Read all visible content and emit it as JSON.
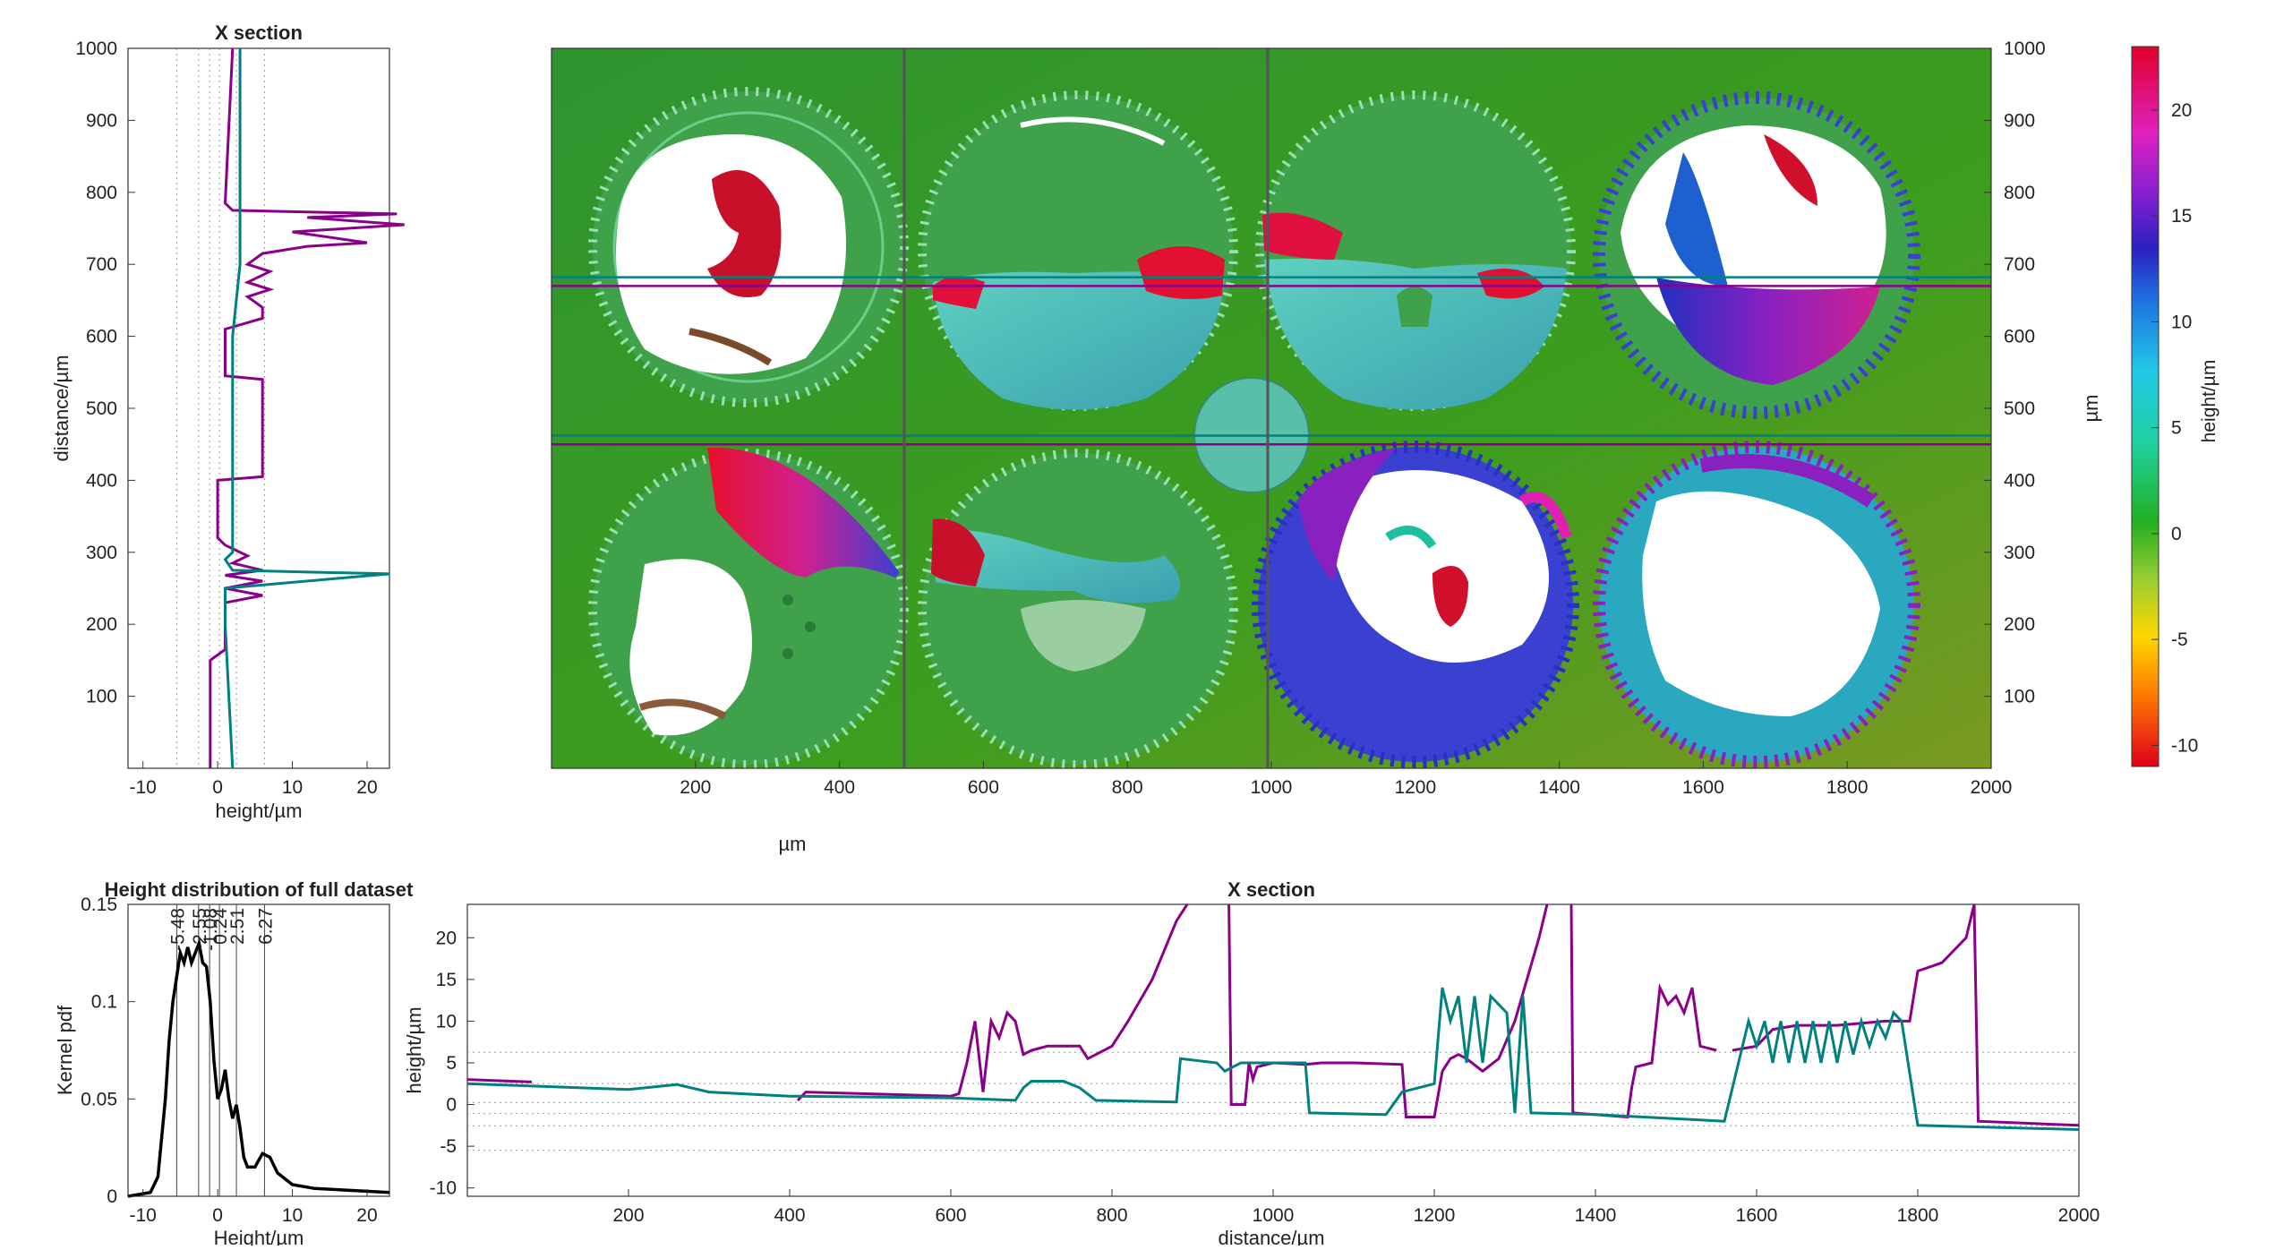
{
  "colors": {
    "magenta_series": "#8b008b",
    "teal_series": "#008080",
    "background_green": "#3a9a1e",
    "pdf_line": "#000000"
  },
  "left_section": {
    "title": "X section",
    "xlabel": "height/µm",
    "ylabel": "distance/µm",
    "xticks": [
      "-10",
      "0",
      "10",
      "20"
    ],
    "yticks": [
      "100",
      "200",
      "300",
      "400",
      "500",
      "600",
      "700",
      "800",
      "900",
      "1000"
    ]
  },
  "map": {
    "xlabel": "µm",
    "ylabel_right": "µm",
    "xticks": [
      "200",
      "400",
      "600",
      "800",
      "1000",
      "1200",
      "1400",
      "1600",
      "1800",
      "2000"
    ],
    "yticks_right": [
      "100",
      "200",
      "300",
      "400",
      "500",
      "600",
      "700",
      "800",
      "900",
      "1000"
    ]
  },
  "colorbar": {
    "label": "height/µm",
    "ticks": [
      "20",
      "15",
      "10",
      "5",
      "0",
      "-5",
      "-10"
    ]
  },
  "pdf_panel": {
    "title": "Height distribution of full dataset",
    "xlabel": "Height/µm",
    "ylabel": "Kernel pdf",
    "xticks": [
      "-10",
      "0",
      "10",
      "20"
    ],
    "yticks": [
      "0",
      "0.05",
      "0.1",
      "0.15"
    ],
    "stat_labels": [
      "-5.48",
      "-2.55",
      "-1.08",
      "0.24",
      "2.51",
      "6.27"
    ]
  },
  "bottom_section": {
    "title": "X section",
    "xlabel": "distance/µm",
    "ylabel": "height/µm",
    "xticks": [
      "200",
      "400",
      "600",
      "800",
      "1000",
      "1200",
      "1400",
      "1600",
      "1800",
      "2000"
    ],
    "yticks": [
      "-10",
      "-5",
      "0",
      "5",
      "10",
      "15",
      "20"
    ]
  },
  "chart_data": [
    {
      "type": "line",
      "title": "X section",
      "xlabel": "height/µm",
      "ylabel": "distance/µm",
      "xlim": [
        -12,
        23
      ],
      "ylim": [
        0,
        1000
      ],
      "reference_lines_x": [
        -5.48,
        -2.55,
        -1.08,
        0.24,
        2.51,
        6.27
      ],
      "series": [
        {
          "color": "magenta",
          "points": [
            [
              -1,
              0
            ],
            [
              -1,
              150
            ],
            [
              1,
              165
            ],
            [
              1,
              230
            ],
            [
              6,
              240
            ],
            [
              1,
              250
            ],
            [
              6,
              260
            ],
            [
              1,
              268
            ],
            [
              6,
              275
            ],
            [
              2,
              285
            ],
            [
              4,
              295
            ],
            [
              1,
              310
            ],
            [
              0,
              320
            ],
            [
              0,
              400
            ],
            [
              6,
              405
            ],
            [
              6,
              540
            ],
            [
              1,
              545
            ],
            [
              1,
              610
            ],
            [
              6,
              625
            ],
            [
              6,
              640
            ],
            [
              4,
              655
            ],
            [
              7,
              665
            ],
            [
              4,
              675
            ],
            [
              7,
              690
            ],
            [
              4,
              700
            ],
            [
              6,
              715
            ],
            [
              12,
              725
            ],
            [
              20,
              730
            ],
            [
              10,
              745
            ],
            [
              25,
              755
            ],
            [
              12,
              765
            ],
            [
              24,
              770
            ],
            [
              2,
              775
            ],
            [
              1,
              785
            ],
            [
              2,
              1000
            ]
          ]
        },
        {
          "color": "teal",
          "points": [
            [
              2,
              0
            ],
            [
              1.5,
              100
            ],
            [
              1,
              200
            ],
            [
              1,
              250
            ],
            [
              23,
              270
            ],
            [
              2,
              275
            ],
            [
              1,
              290
            ],
            [
              2,
              300
            ],
            [
              2,
              400
            ],
            [
              2,
              500
            ],
            [
              2,
              600
            ],
            [
              3,
              700
            ],
            [
              3,
              770
            ],
            [
              3,
              1000
            ]
          ]
        }
      ]
    },
    {
      "type": "heatmap",
      "xlabel": "µm",
      "ylabel": "µm",
      "xlim": [
        0,
        2000
      ],
      "ylim": [
        0,
        1000
      ],
      "colorbar_label": "height/µm",
      "colorbar_range": [
        -11,
        23
      ],
      "section_lines_y": [
        450,
        462,
        670,
        682
      ],
      "section_lines_x": [
        490,
        995
      ]
    },
    {
      "type": "line",
      "title": "Height distribution of full dataset",
      "xlabel": "Height/µm",
      "ylabel": "Kernel pdf",
      "xlim": [
        -12,
        23
      ],
      "ylim": [
        0,
        0.15
      ],
      "vertical_lines": [
        -5.48,
        -2.55,
        -1.08,
        0.24,
        2.51,
        6.27
      ],
      "series": [
        {
          "points": [
            [
              -12,
              0
            ],
            [
              -9,
              0.002
            ],
            [
              -8,
              0.01
            ],
            [
              -7,
              0.05
            ],
            [
              -6.5,
              0.08
            ],
            [
              -6,
              0.1
            ],
            [
              -5,
              0.125
            ],
            [
              -4.5,
              0.12
            ],
            [
              -4,
              0.128
            ],
            [
              -3.5,
              0.12
            ],
            [
              -3,
              0.125
            ],
            [
              -2.5,
              0.13
            ],
            [
              -2,
              0.12
            ],
            [
              -1.5,
              0.118
            ],
            [
              -1,
              0.1
            ],
            [
              -0.5,
              0.07
            ],
            [
              0,
              0.05
            ],
            [
              0.5,
              0.055
            ],
            [
              1,
              0.065
            ],
            [
              1.5,
              0.05
            ],
            [
              2,
              0.04
            ],
            [
              2.5,
              0.047
            ],
            [
              3,
              0.035
            ],
            [
              3.5,
              0.02
            ],
            [
              4,
              0.015
            ],
            [
              5,
              0.015
            ],
            [
              6,
              0.022
            ],
            [
              7,
              0.02
            ],
            [
              8,
              0.012
            ],
            [
              10,
              0.006
            ],
            [
              13,
              0.004
            ],
            [
              18,
              0.003
            ],
            [
              23,
              0.002
            ]
          ]
        }
      ]
    },
    {
      "type": "line",
      "title": "X section",
      "xlabel": "distance/µm",
      "ylabel": "height/µm",
      "xlim": [
        0,
        2000
      ],
      "ylim": [
        -11,
        24
      ],
      "reference_lines_y": [
        -5.48,
        -2.55,
        -1.08,
        0.24,
        2.51,
        6.27
      ],
      "series": [
        {
          "color": "magenta",
          "points": [
            [
              0,
              3
            ],
            [
              80,
              2.7
            ],
            [
              null,
              null
            ],
            [
              410,
              0.5
            ],
            [
              420,
              1.5
            ],
            [
              600,
              1
            ],
            [
              610,
              1.3
            ],
            [
              620,
              5
            ],
            [
              630,
              10
            ],
            [
              640,
              1.5
            ],
            [
              650,
              10
            ],
            [
              660,
              8
            ],
            [
              670,
              11
            ],
            [
              680,
              10
            ],
            [
              690,
              6
            ],
            [
              700,
              6.5
            ],
            [
              720,
              7
            ],
            [
              760,
              7
            ],
            [
              770,
              5.5
            ],
            [
              780,
              6
            ],
            [
              800,
              7
            ],
            [
              820,
              10
            ],
            [
              850,
              15
            ],
            [
              880,
              22
            ],
            [
              900,
              25
            ],
            [
              null,
              null
            ],
            [
              945,
              25
            ],
            [
              948,
              0
            ],
            [
              965,
              0
            ],
            [
              970,
              5
            ],
            [
              975,
              3
            ],
            [
              980,
              4.5
            ],
            [
              1000,
              5
            ],
            [
              1040,
              4.8
            ],
            [
              1060,
              5
            ],
            [
              1100,
              5
            ],
            [
              1160,
              4.8
            ],
            [
              1165,
              -1.5
            ],
            [
              1200,
              -1.5
            ],
            [
              1210,
              4
            ],
            [
              1220,
              5.5
            ],
            [
              1230,
              6
            ],
            [
              1240,
              5.5
            ],
            [
              1260,
              4
            ],
            [
              1280,
              5.5
            ],
            [
              1300,
              10
            ],
            [
              1330,
              20
            ],
            [
              1340,
              24
            ],
            [
              null,
              null
            ],
            [
              1370,
              24
            ],
            [
              1372,
              -1
            ],
            [
              1440,
              -1.5
            ],
            [
              1445,
              2
            ],
            [
              1450,
              4.5
            ],
            [
              1470,
              5
            ],
            [
              1480,
              14
            ],
            [
              1490,
              12
            ],
            [
              1500,
              13
            ],
            [
              1510,
              11
            ],
            [
              1520,
              14
            ],
            [
              1530,
              7
            ],
            [
              1550,
              6.5
            ],
            [
              null,
              null
            ],
            [
              1570,
              6.5
            ],
            [
              1600,
              7
            ],
            [
              1620,
              9
            ],
            [
              1650,
              9.5
            ],
            [
              1700,
              9.5
            ],
            [
              1760,
              10
            ],
            [
              1790,
              10
            ],
            [
              1800,
              16
            ],
            [
              1830,
              17
            ],
            [
              1860,
              20
            ],
            [
              1870,
              24
            ],
            [
              1875,
              -2
            ],
            [
              2000,
              -2.5
            ]
          ]
        },
        {
          "color": "teal",
          "points": [
            [
              0,
              2.5
            ],
            [
              200,
              1.8
            ],
            [
              260,
              2.4
            ],
            [
              300,
              1.5
            ],
            [
              400,
              1
            ],
            [
              600,
              0.8
            ],
            [
              680,
              0.5
            ],
            [
              690,
              2
            ],
            [
              700,
              2.8
            ],
            [
              740,
              2.8
            ],
            [
              760,
              2
            ],
            [
              780,
              0.5
            ],
            [
              880,
              0.3
            ],
            [
              885,
              5.5
            ],
            [
              930,
              5
            ],
            [
              940,
              4
            ],
            [
              960,
              5
            ],
            [
              1040,
              5
            ],
            [
              1045,
              -1
            ],
            [
              1140,
              -1.2
            ],
            [
              1160,
              1.5
            ],
            [
              1200,
              2.5
            ],
            [
              1210,
              14
            ],
            [
              1220,
              10
            ],
            [
              1230,
              13
            ],
            [
              1240,
              5
            ],
            [
              1250,
              13
            ],
            [
              1260,
              5
            ],
            [
              1270,
              13
            ],
            [
              1290,
              11
            ],
            [
              1300,
              -1
            ],
            [
              1310,
              13
            ],
            [
              1320,
              -1
            ],
            [
              1400,
              -1.2
            ],
            [
              1560,
              -2
            ],
            [
              1590,
              10
            ],
            [
              1600,
              7
            ],
            [
              1610,
              10
            ],
            [
              1620,
              5
            ],
            [
              1630,
              10
            ],
            [
              1640,
              5
            ],
            [
              1650,
              10
            ],
            [
              1660,
              5
            ],
            [
              1670,
              10
            ],
            [
              1680,
              5
            ],
            [
              1690,
              10
            ],
            [
              1700,
              5
            ],
            [
              1710,
              10
            ],
            [
              1720,
              6
            ],
            [
              1730,
              10
            ],
            [
              1740,
              7
            ],
            [
              1750,
              10
            ],
            [
              1760,
              8
            ],
            [
              1770,
              11
            ],
            [
              1780,
              10
            ],
            [
              1800,
              -2.5
            ],
            [
              2000,
              -3
            ]
          ]
        }
      ]
    }
  ]
}
